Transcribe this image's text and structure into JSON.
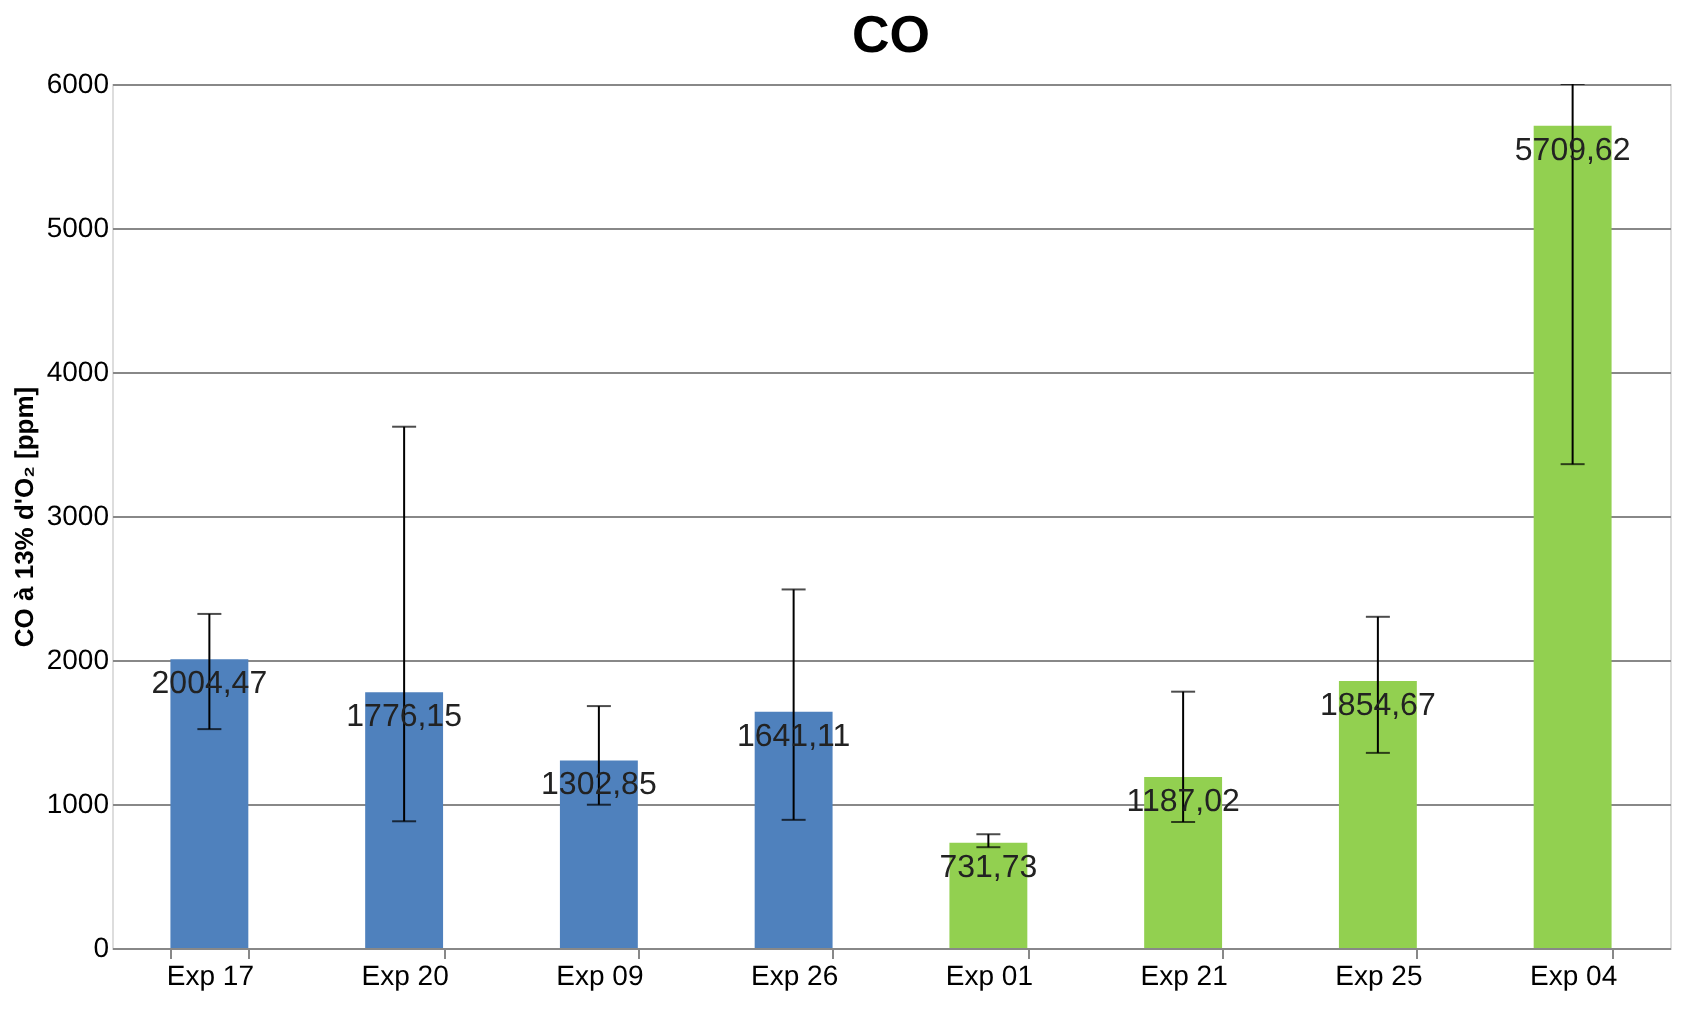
{
  "chart_data": {
    "type": "bar",
    "title": "CO",
    "ylabel": "CO à 13% d'O₂ [ppm]",
    "categories": [
      "Exp 17",
      "Exp 20",
      "Exp 09",
      "Exp 26",
      "Exp 01",
      "Exp 21",
      "Exp 25",
      "Exp 04"
    ],
    "values": [
      2004.47,
      1776.15,
      1302.85,
      1641.11,
      731.73,
      1187.02,
      1854.67,
      5709.62
    ],
    "colors": [
      "#4f81bd",
      "#4f81bd",
      "#4f81bd",
      "#4f81bd",
      "#92d050",
      "#92d050",
      "#92d050",
      "#92d050"
    ],
    "errors": [
      [
        1520,
        2320
      ],
      [
        880,
        3620
      ],
      [
        995,
        1680
      ],
      [
        890,
        2490
      ],
      [
        700,
        790
      ],
      [
        875,
        1780
      ],
      [
        1355,
        2300
      ],
      [
        3360,
        6000
      ]
    ],
    "value_labels": [
      "2004,47",
      "1776,15",
      "1302,85",
      "1641,11",
      "731,73",
      "1187,02",
      "1854,67",
      "5709,62"
    ],
    "ylim": [
      0,
      6000
    ],
    "yticks": [
      0,
      1000,
      2000,
      3000,
      4000,
      5000,
      6000
    ],
    "grid": "y"
  }
}
